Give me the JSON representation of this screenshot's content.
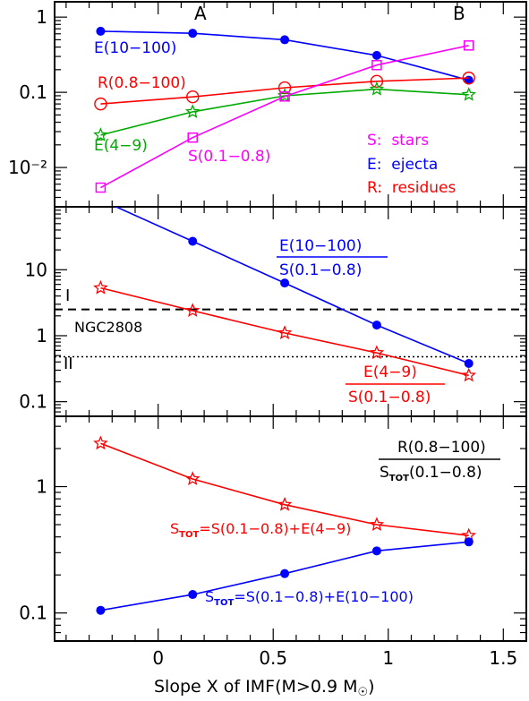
{
  "figure": {
    "xlabel": "Slope X of IMF(M>0.9 M",
    "xlabel_sun": "☉",
    "xlabel_close": ")",
    "x_ticks": [
      "0",
      "0.5",
      "1",
      "1.5"
    ],
    "x_tick_values": [
      0,
      0.5,
      1,
      1.5
    ],
    "xlim": [
      -0.45,
      1.6
    ]
  },
  "colors": {
    "stars": "#ff00ff",
    "ejecta": "#0000ff",
    "residues": "#ff0000",
    "green": "#00aa00",
    "black": "#000000"
  },
  "chart_data": [
    {
      "type": "line",
      "panel": "top",
      "yscale": "log",
      "ylim": [
        0.003,
        1.6
      ],
      "y_ticks": [
        {
          "value": 1,
          "label": "1"
        },
        {
          "value": 0.1,
          "label": "0.1"
        },
        {
          "value": 0.01,
          "label": "10⁻²"
        }
      ],
      "x": [
        -0.25,
        0.15,
        0.55,
        0.95,
        1.35
      ],
      "series": [
        {
          "key": "E_10_100",
          "name": "E(10−100)",
          "color": "#0000ff",
          "marker": "dot",
          "values": [
            0.65,
            0.61,
            0.5,
            0.31,
            0.145
          ]
        },
        {
          "key": "R_08_100",
          "name": "R(0.8−100)",
          "color": "#ff0000",
          "marker": "circle",
          "values": [
            0.07,
            0.087,
            0.115,
            0.14,
            0.155
          ]
        },
        {
          "key": "E_4_9",
          "name": "E(4−9)",
          "color": "#00aa00",
          "marker": "star",
          "values": [
            0.027,
            0.055,
            0.09,
            0.11,
            0.093
          ]
        },
        {
          "key": "S_01_08",
          "name": "S(0.1−0.8)",
          "color": "#ff00ff",
          "marker": "square",
          "values": [
            0.0054,
            0.025,
            0.088,
            0.23,
            0.42
          ]
        }
      ],
      "top_labels": [
        "A",
        "B"
      ],
      "legend": [
        "S:  stars",
        "E:  ejecta",
        "R:  residues"
      ]
    },
    {
      "type": "line",
      "panel": "middle",
      "yscale": "log",
      "ylim": [
        0.06,
        90
      ],
      "y_ticks": [
        {
          "value": 10,
          "label": "10"
        },
        {
          "value": 1,
          "label": "1"
        },
        {
          "value": 0.1,
          "label": "0.1"
        }
      ],
      "x": [
        -0.25,
        0.15,
        0.55,
        0.95,
        1.35
      ],
      "series": [
        {
          "key": "E10_over_S",
          "numerator": "E(10−100)",
          "denominator": "S(0.1−0.8)",
          "color": "#0000ff",
          "marker": "dot",
          "values": [
            115,
            27,
            6.3,
            1.45,
            0.38
          ]
        },
        {
          "key": "E4_over_S",
          "numerator": "E(4−9)",
          "denominator": "S(0.1−0.8)",
          "color": "#ff0000",
          "marker": "star",
          "values": [
            5.3,
            2.4,
            1.1,
            0.55,
            0.25
          ]
        }
      ],
      "reference_lines": [
        {
          "label": "I",
          "value": 2.5,
          "style": "dashed"
        },
        {
          "label": "II",
          "value": 0.48,
          "style": "dotted"
        }
      ],
      "annotation": "NGC2808"
    },
    {
      "type": "line",
      "panel": "bottom",
      "yscale": "log",
      "ylim": [
        0.06,
        3.6
      ],
      "y_ticks": [
        {
          "value": 1,
          "label": "1"
        },
        {
          "value": 0.1,
          "label": "0.1"
        }
      ],
      "x": [
        -0.25,
        0.15,
        0.55,
        0.95,
        1.35
      ],
      "series": [
        {
          "key": "R_over_Stot_E4",
          "color": "#ff0000",
          "marker": "star",
          "values": [
            2.2,
            1.15,
            0.72,
            0.5,
            0.41
          ]
        },
        {
          "key": "R_over_Stot_E10",
          "color": "#0000ff",
          "marker": "dot",
          "values": [
            0.105,
            0.14,
            0.205,
            0.31,
            0.365
          ]
        }
      ],
      "ratio_label": {
        "numerator": "R(0.8−100)",
        "denominator_main": "S",
        "denominator_sub": "TOT",
        "denominator_rest": "(0.1−0.8)"
      },
      "stot_labels": [
        {
          "color": "#ff0000",
          "main": "S",
          "sub": "TOT",
          "rest": "=S(0.1−0.8)+E(4−9)"
        },
        {
          "color": "#0000ff",
          "main": "S",
          "sub": "TOT",
          "rest": "=S(0.1−0.8)+E(10−100)"
        }
      ]
    }
  ]
}
